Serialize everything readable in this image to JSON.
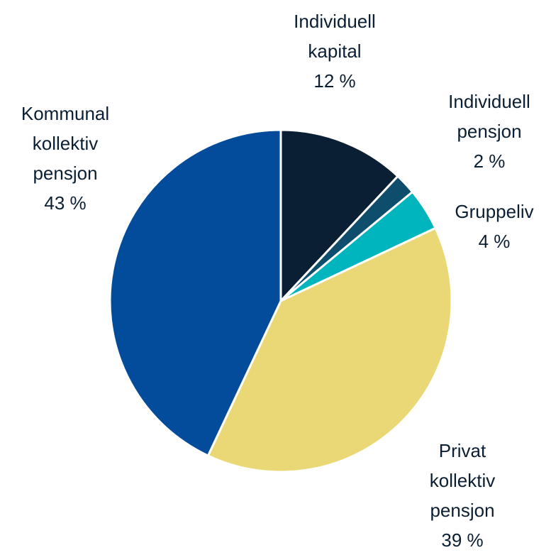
{
  "chart_data": {
    "type": "pie",
    "categories": [
      "Individuell kapital",
      "Individuell pensjon",
      "Gruppeliv",
      "Privat kollektiv pensjon",
      "Kommunal kollektiv pensjon"
    ],
    "values": [
      12,
      2,
      4,
      39,
      43
    ],
    "value_labels": [
      "12 %",
      "2 %",
      "4 %",
      "39 %",
      "43 %"
    ],
    "colors": [
      "#0a1f33",
      "#0e4d6b",
      "#00b5bd",
      "#ead776",
      "#034b9b"
    ]
  }
}
